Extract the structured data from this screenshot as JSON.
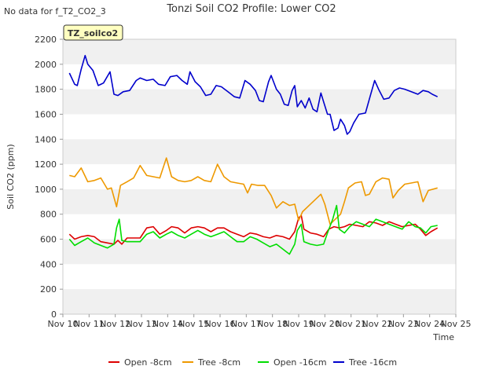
{
  "header": {
    "nodata": "No data for f_T2_CO2_3",
    "title": "Tonzi Soil CO2 Profile: Lower CO2",
    "tag": "TZ_soilco2"
  },
  "chart_data": {
    "type": "line",
    "title": "Tonzi Soil CO2 Profile: Lower CO2",
    "xlabel": "Time",
    "ylabel": "Soil CO2 (ppm)",
    "xlim": [
      10,
      25
    ],
    "ylim": [
      0,
      2200
    ],
    "yticks": [
      0,
      200,
      400,
      600,
      800,
      1000,
      1200,
      1400,
      1600,
      1800,
      2000,
      2200
    ],
    "xticks": [
      {
        "v": 10,
        "label": "Nov 10"
      },
      {
        "v": 11,
        "label": "Nov 11"
      },
      {
        "v": 12,
        "label": "Nov 12"
      },
      {
        "v": 13,
        "label": "Nov 13"
      },
      {
        "v": 14,
        "label": "Nov 14"
      },
      {
        "v": 15,
        "label": "Nov 15"
      },
      {
        "v": 16,
        "label": "Nov 16"
      },
      {
        "v": 17,
        "label": "Nov 17"
      },
      {
        "v": 18,
        "label": "Nov 18"
      },
      {
        "v": 19,
        "label": "Nov 19"
      },
      {
        "v": 20,
        "label": "Nov 20"
      },
      {
        "v": 21,
        "label": "Nov 21"
      },
      {
        "v": 22,
        "label": "Nov 22"
      },
      {
        "v": 23,
        "label": "Nov 23"
      },
      {
        "v": 24,
        "label": "Nov 24"
      },
      {
        "v": 25,
        "label": "Nov 25"
      }
    ],
    "grid": "horizontal bands",
    "legend": "bottom",
    "series": [
      {
        "name": "Open -8cm",
        "color": "#dd0000",
        "points": [
          [
            10.25,
            640
          ],
          [
            10.45,
            600
          ],
          [
            10.7,
            620
          ],
          [
            10.95,
            630
          ],
          [
            11.2,
            620
          ],
          [
            11.45,
            580
          ],
          [
            11.7,
            570
          ],
          [
            11.95,
            560
          ],
          [
            12.1,
            590
          ],
          [
            12.25,
            560
          ],
          [
            12.45,
            610
          ],
          [
            12.7,
            610
          ],
          [
            12.95,
            610
          ],
          [
            13.2,
            690
          ],
          [
            13.45,
            700
          ],
          [
            13.7,
            640
          ],
          [
            13.95,
            670
          ],
          [
            14.15,
            700
          ],
          [
            14.4,
            690
          ],
          [
            14.65,
            650
          ],
          [
            14.9,
            690
          ],
          [
            15.15,
            700
          ],
          [
            15.4,
            690
          ],
          [
            15.65,
            660
          ],
          [
            15.9,
            690
          ],
          [
            16.15,
            690
          ],
          [
            16.4,
            660
          ],
          [
            16.65,
            640
          ],
          [
            16.9,
            620
          ],
          [
            17.15,
            650
          ],
          [
            17.4,
            640
          ],
          [
            17.65,
            620
          ],
          [
            17.9,
            610
          ],
          [
            18.15,
            630
          ],
          [
            18.4,
            620
          ],
          [
            18.65,
            600
          ],
          [
            18.85,
            660
          ],
          [
            19.0,
            770
          ],
          [
            19.1,
            790
          ],
          [
            19.2,
            680
          ],
          [
            19.45,
            650
          ],
          [
            19.7,
            640
          ],
          [
            19.95,
            620
          ],
          [
            20.15,
            680
          ],
          [
            20.35,
            700
          ],
          [
            20.55,
            690
          ],
          [
            20.75,
            700
          ],
          [
            20.95,
            720
          ],
          [
            21.2,
            710
          ],
          [
            21.45,
            700
          ],
          [
            21.7,
            740
          ],
          [
            21.95,
            730
          ],
          [
            22.2,
            710
          ],
          [
            22.45,
            740
          ],
          [
            22.7,
            720
          ],
          [
            22.95,
            700
          ],
          [
            23.2,
            710
          ],
          [
            23.45,
            720
          ],
          [
            23.65,
            680
          ],
          [
            23.85,
            630
          ],
          [
            24.05,
            660
          ],
          [
            24.3,
            690
          ]
        ]
      },
      {
        "name": "Tree -8cm",
        "color": "#ee9900",
        "points": [
          [
            10.25,
            1110
          ],
          [
            10.45,
            1100
          ],
          [
            10.7,
            1170
          ],
          [
            10.95,
            1060
          ],
          [
            11.2,
            1070
          ],
          [
            11.45,
            1090
          ],
          [
            11.7,
            1000
          ],
          [
            11.85,
            1010
          ],
          [
            12.05,
            860
          ],
          [
            12.2,
            1030
          ],
          [
            12.45,
            1060
          ],
          [
            12.7,
            1090
          ],
          [
            12.95,
            1190
          ],
          [
            13.2,
            1110
          ],
          [
            13.45,
            1100
          ],
          [
            13.7,
            1090
          ],
          [
            13.95,
            1250
          ],
          [
            14.15,
            1100
          ],
          [
            14.4,
            1070
          ],
          [
            14.65,
            1060
          ],
          [
            14.9,
            1070
          ],
          [
            15.15,
            1100
          ],
          [
            15.4,
            1070
          ],
          [
            15.65,
            1060
          ],
          [
            15.9,
            1200
          ],
          [
            16.15,
            1100
          ],
          [
            16.4,
            1060
          ],
          [
            16.65,
            1050
          ],
          [
            16.9,
            1040
          ],
          [
            17.05,
            970
          ],
          [
            17.2,
            1040
          ],
          [
            17.45,
            1030
          ],
          [
            17.7,
            1030
          ],
          [
            17.95,
            950
          ],
          [
            18.15,
            850
          ],
          [
            18.4,
            900
          ],
          [
            18.65,
            870
          ],
          [
            18.85,
            880
          ],
          [
            19.0,
            750
          ],
          [
            19.15,
            820
          ],
          [
            19.4,
            870
          ],
          [
            19.65,
            920
          ],
          [
            19.85,
            960
          ],
          [
            20.0,
            880
          ],
          [
            20.2,
            720
          ],
          [
            20.4,
            760
          ],
          [
            20.6,
            800
          ],
          [
            20.75,
            900
          ],
          [
            20.9,
            1010
          ],
          [
            21.15,
            1050
          ],
          [
            21.4,
            1060
          ],
          [
            21.55,
            950
          ],
          [
            21.7,
            960
          ],
          [
            21.95,
            1060
          ],
          [
            22.2,
            1090
          ],
          [
            22.45,
            1080
          ],
          [
            22.6,
            930
          ],
          [
            22.8,
            990
          ],
          [
            23.05,
            1040
          ],
          [
            23.3,
            1050
          ],
          [
            23.55,
            1060
          ],
          [
            23.75,
            900
          ],
          [
            23.95,
            990
          ],
          [
            24.3,
            1010
          ]
        ]
      },
      {
        "name": "Open -16cm",
        "color": "#00dd00",
        "points": [
          [
            10.25,
            600
          ],
          [
            10.45,
            550
          ],
          [
            10.7,
            580
          ],
          [
            10.95,
            610
          ],
          [
            11.2,
            570
          ],
          [
            11.45,
            550
          ],
          [
            11.7,
            530
          ],
          [
            11.95,
            560
          ],
          [
            12.05,
            690
          ],
          [
            12.15,
            760
          ],
          [
            12.25,
            590
          ],
          [
            12.45,
            580
          ],
          [
            12.7,
            580
          ],
          [
            12.95,
            580
          ],
          [
            13.2,
            640
          ],
          [
            13.45,
            660
          ],
          [
            13.7,
            610
          ],
          [
            13.95,
            640
          ],
          [
            14.15,
            660
          ],
          [
            14.4,
            630
          ],
          [
            14.65,
            610
          ],
          [
            14.9,
            640
          ],
          [
            15.15,
            670
          ],
          [
            15.4,
            640
          ],
          [
            15.65,
            620
          ],
          [
            15.9,
            640
          ],
          [
            16.15,
            660
          ],
          [
            16.4,
            620
          ],
          [
            16.65,
            580
          ],
          [
            16.9,
            580
          ],
          [
            17.15,
            620
          ],
          [
            17.4,
            600
          ],
          [
            17.65,
            570
          ],
          [
            17.9,
            540
          ],
          [
            18.15,
            560
          ],
          [
            18.4,
            520
          ],
          [
            18.65,
            480
          ],
          [
            18.85,
            560
          ],
          [
            18.95,
            670
          ],
          [
            19.1,
            720
          ],
          [
            19.2,
            580
          ],
          [
            19.45,
            560
          ],
          [
            19.7,
            550
          ],
          [
            19.95,
            560
          ],
          [
            20.1,
            650
          ],
          [
            20.3,
            760
          ],
          [
            20.45,
            870
          ],
          [
            20.55,
            680
          ],
          [
            20.75,
            650
          ],
          [
            20.95,
            700
          ],
          [
            21.2,
            740
          ],
          [
            21.45,
            720
          ],
          [
            21.7,
            700
          ],
          [
            21.95,
            760
          ],
          [
            22.2,
            740
          ],
          [
            22.45,
            720
          ],
          [
            22.7,
            700
          ],
          [
            22.95,
            680
          ],
          [
            23.2,
            740
          ],
          [
            23.45,
            700
          ],
          [
            23.65,
            690
          ],
          [
            23.85,
            650
          ],
          [
            24.05,
            700
          ],
          [
            24.3,
            710
          ]
        ]
      },
      {
        "name": "Tree -16cm",
        "color": "#0000cc",
        "points": [
          [
            10.25,
            1930
          ],
          [
            10.45,
            1840
          ],
          [
            10.55,
            1830
          ],
          [
            10.7,
            1960
          ],
          [
            10.85,
            2070
          ],
          [
            10.95,
            2000
          ],
          [
            11.15,
            1950
          ],
          [
            11.35,
            1830
          ],
          [
            11.55,
            1850
          ],
          [
            11.8,
            1940
          ],
          [
            11.95,
            1760
          ],
          [
            12.1,
            1750
          ],
          [
            12.3,
            1780
          ],
          [
            12.55,
            1790
          ],
          [
            12.8,
            1870
          ],
          [
            12.95,
            1890
          ],
          [
            13.2,
            1870
          ],
          [
            13.45,
            1880
          ],
          [
            13.65,
            1840
          ],
          [
            13.9,
            1830
          ],
          [
            14.1,
            1900
          ],
          [
            14.35,
            1910
          ],
          [
            14.55,
            1870
          ],
          [
            14.75,
            1840
          ],
          [
            14.85,
            1940
          ],
          [
            15.05,
            1860
          ],
          [
            15.25,
            1820
          ],
          [
            15.45,
            1750
          ],
          [
            15.65,
            1760
          ],
          [
            15.85,
            1830
          ],
          [
            16.05,
            1820
          ],
          [
            16.3,
            1780
          ],
          [
            16.55,
            1740
          ],
          [
            16.75,
            1730
          ],
          [
            16.95,
            1870
          ],
          [
            17.15,
            1840
          ],
          [
            17.35,
            1790
          ],
          [
            17.5,
            1710
          ],
          [
            17.65,
            1700
          ],
          [
            17.85,
            1860
          ],
          [
            17.95,
            1910
          ],
          [
            18.15,
            1800
          ],
          [
            18.3,
            1760
          ],
          [
            18.45,
            1680
          ],
          [
            18.6,
            1670
          ],
          [
            18.75,
            1790
          ],
          [
            18.85,
            1830
          ],
          [
            18.95,
            1660
          ],
          [
            19.1,
            1710
          ],
          [
            19.25,
            1650
          ],
          [
            19.4,
            1730
          ],
          [
            19.55,
            1640
          ],
          [
            19.7,
            1620
          ],
          [
            19.85,
            1770
          ],
          [
            19.95,
            1700
          ],
          [
            20.1,
            1600
          ],
          [
            20.2,
            1600
          ],
          [
            20.35,
            1470
          ],
          [
            20.5,
            1490
          ],
          [
            20.6,
            1560
          ],
          [
            20.75,
            1510
          ],
          [
            20.85,
            1440
          ],
          [
            20.95,
            1460
          ],
          [
            21.1,
            1530
          ],
          [
            21.3,
            1600
          ],
          [
            21.55,
            1610
          ],
          [
            21.75,
            1760
          ],
          [
            21.9,
            1870
          ],
          [
            22.05,
            1800
          ],
          [
            22.25,
            1720
          ],
          [
            22.45,
            1730
          ],
          [
            22.65,
            1790
          ],
          [
            22.85,
            1810
          ],
          [
            23.05,
            1800
          ],
          [
            23.3,
            1780
          ],
          [
            23.55,
            1760
          ],
          [
            23.75,
            1790
          ],
          [
            23.95,
            1780
          ],
          [
            24.1,
            1760
          ],
          [
            24.3,
            1740
          ]
        ]
      }
    ]
  }
}
